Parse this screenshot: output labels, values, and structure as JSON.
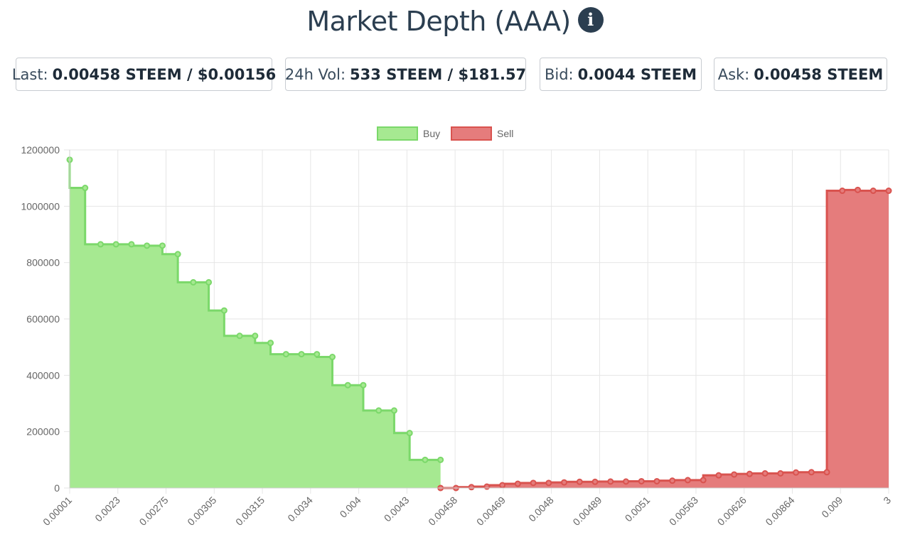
{
  "header": {
    "title": "Market Depth (AAA)",
    "info_icon": "info-icon"
  },
  "stats": {
    "last_label": "Last:",
    "last_value": "0.00458 STEEM / $0.00156",
    "vol_label": "24h Vol:",
    "vol_value": "533 STEEM / $181.57",
    "bid_label": "Bid:",
    "bid_value": "0.0044 STEEM",
    "ask_label": "Ask:",
    "ask_value": "0.00458 STEEM"
  },
  "colors": {
    "buy_fill": "#a6e991",
    "buy_line": "#7bd86a",
    "sell_fill": "#e57c7c",
    "sell_line": "#d9534f",
    "grid": "#e6e6e6",
    "text": "#2b3e50"
  },
  "chart_data": {
    "type": "area",
    "step": true,
    "legend": {
      "position": "top-center",
      "entries": [
        "Buy",
        "Sell"
      ]
    },
    "ylim": [
      0,
      1200000
    ],
    "yticks": [
      "1200000",
      "1000000",
      "800000",
      "600000",
      "400000",
      "200000",
      "0"
    ],
    "xticks": [
      "0.00001",
      "0.0023",
      "0.00275",
      "0.00305",
      "0.00315",
      "0.0034",
      "0.004",
      "0.0043",
      "0.00458",
      "0.00469",
      "0.0048",
      "0.00489",
      "0.0051",
      "0.00563",
      "0.00626",
      "0.00864",
      "0.009",
      "3"
    ],
    "series": [
      {
        "name": "Buy",
        "point_index": [
          0,
          1,
          2,
          3,
          4,
          5,
          6,
          7,
          8,
          9,
          10,
          11,
          12,
          13,
          14,
          15,
          16,
          17,
          18,
          19,
          20,
          21,
          22,
          23,
          24
        ],
        "values": [
          1165000,
          1065000,
          865000,
          865000,
          865000,
          860000,
          860000,
          830000,
          730000,
          730000,
          630000,
          540000,
          540000,
          515000,
          475000,
          475000,
          475000,
          465000,
          365000,
          365000,
          275000,
          275000,
          195000,
          100000,
          100000
        ]
      },
      {
        "name": "Sell",
        "point_index": [
          24,
          25,
          26,
          27,
          28,
          29,
          30,
          31,
          32,
          33,
          34,
          35,
          36,
          37,
          38,
          39,
          40,
          41,
          42,
          43,
          44,
          45,
          46,
          47,
          48,
          49,
          50,
          51,
          52,
          53
        ],
        "values": [
          0,
          0,
          3000,
          5000,
          10000,
          15000,
          18000,
          18000,
          20000,
          22000,
          22000,
          23000,
          23000,
          24000,
          24000,
          26000,
          28000,
          28000,
          45000,
          48000,
          50000,
          52000,
          52000,
          55000,
          56000,
          56000,
          1055000,
          1058000,
          1055000,
          1055000
        ]
      }
    ]
  }
}
